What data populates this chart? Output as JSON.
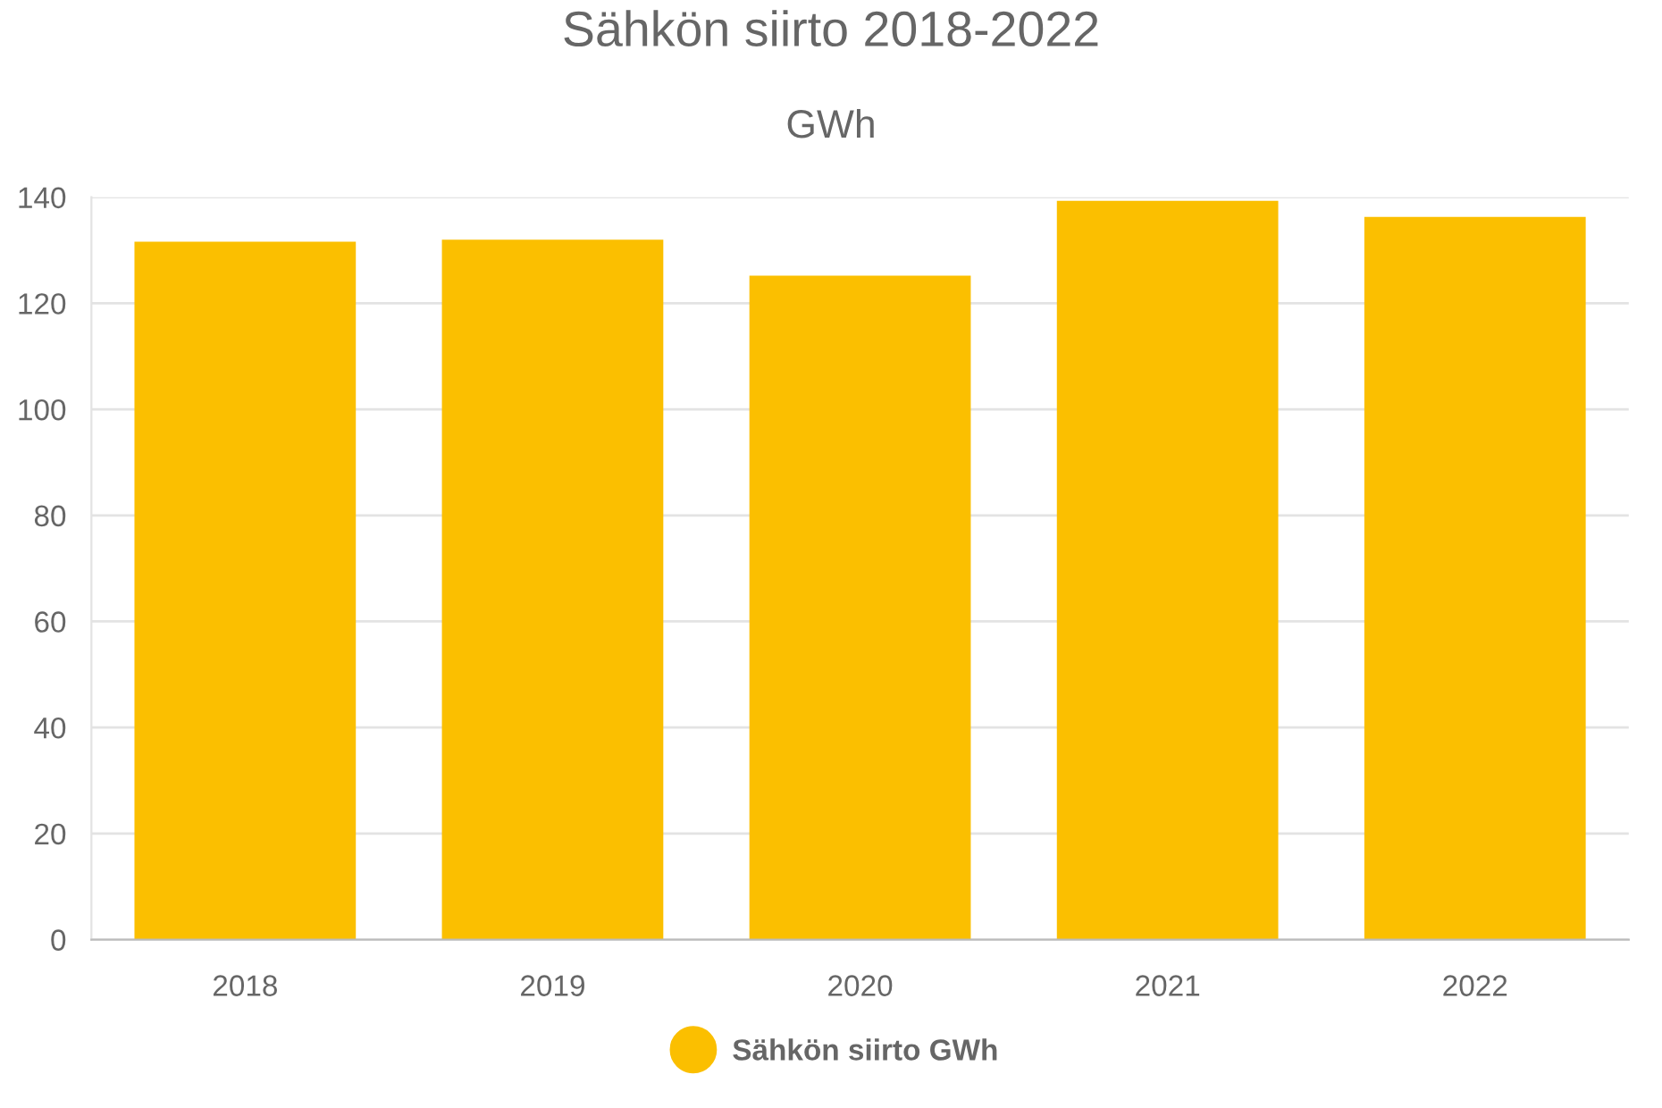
{
  "chart_data": {
    "type": "bar",
    "title": "Sähkön siirto 2018-2022",
    "subtitle": "GWh",
    "categories": [
      "2018",
      "2019",
      "2020",
      "2021",
      "2022"
    ],
    "series": [
      {
        "name": "Sähkön siirto GWh",
        "color": "#fbbf00",
        "values": [
          131.6,
          132.0,
          125.2,
          139.3,
          136.3
        ]
      }
    ],
    "ylim": [
      0,
      140
    ],
    "yticks": [
      0,
      20,
      40,
      60,
      80,
      100,
      120,
      140
    ],
    "grid": "y",
    "legend": "bottom"
  }
}
